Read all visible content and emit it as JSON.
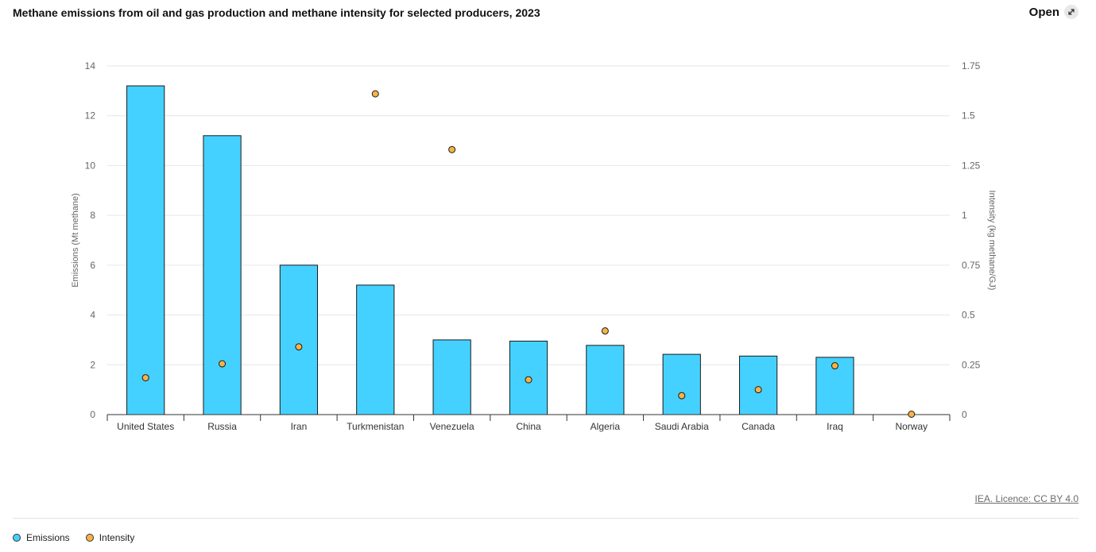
{
  "header": {
    "title": "Methane emissions from oil and gas production and methane intensity for selected producers, 2023",
    "open_label": "Open"
  },
  "source_label": "IEA. Licence: CC BY 4.0",
  "legend": [
    {
      "label": "Emissions",
      "color": "#45d1ff"
    },
    {
      "label": "Intensity",
      "color": "#f7b347"
    }
  ],
  "chart_data": {
    "type": "bar",
    "title": "Methane emissions from oil and gas production and methane intensity for selected producers, 2023",
    "categories": [
      "United States",
      "Russia",
      "Iran",
      "Turkmenistan",
      "Venezuela",
      "China",
      "Algeria",
      "Saudi Arabia",
      "Canada",
      "Iraq",
      "Norway"
    ],
    "series": [
      {
        "name": "Emissions",
        "type": "bar",
        "axis": "left",
        "color": "#45d1ff",
        "values": [
          13.2,
          11.2,
          6.0,
          5.2,
          3.0,
          2.95,
          2.78,
          2.42,
          2.35,
          2.3,
          0.0
        ]
      },
      {
        "name": "Intensity",
        "type": "scatter",
        "axis": "right",
        "color": "#f7b347",
        "values": [
          0.185,
          0.255,
          0.34,
          1.61,
          1.33,
          0.175,
          0.42,
          0.095,
          0.125,
          0.245,
          0.002
        ]
      }
    ],
    "ylabel": "Emissions (Mt methane)",
    "ylim": [
      0,
      14
    ],
    "yticks": [
      0,
      2,
      4,
      6,
      8,
      10,
      12,
      14
    ],
    "y2label": "Intensity (kg methane/GJ)",
    "y2lim": [
      0,
      1.75
    ],
    "y2ticks": [
      "0",
      "0.25",
      "0.5",
      "0.75",
      "1",
      "1.25",
      "1.5",
      "1.75"
    ],
    "grid": true,
    "legend_position": "bottom-left"
  }
}
